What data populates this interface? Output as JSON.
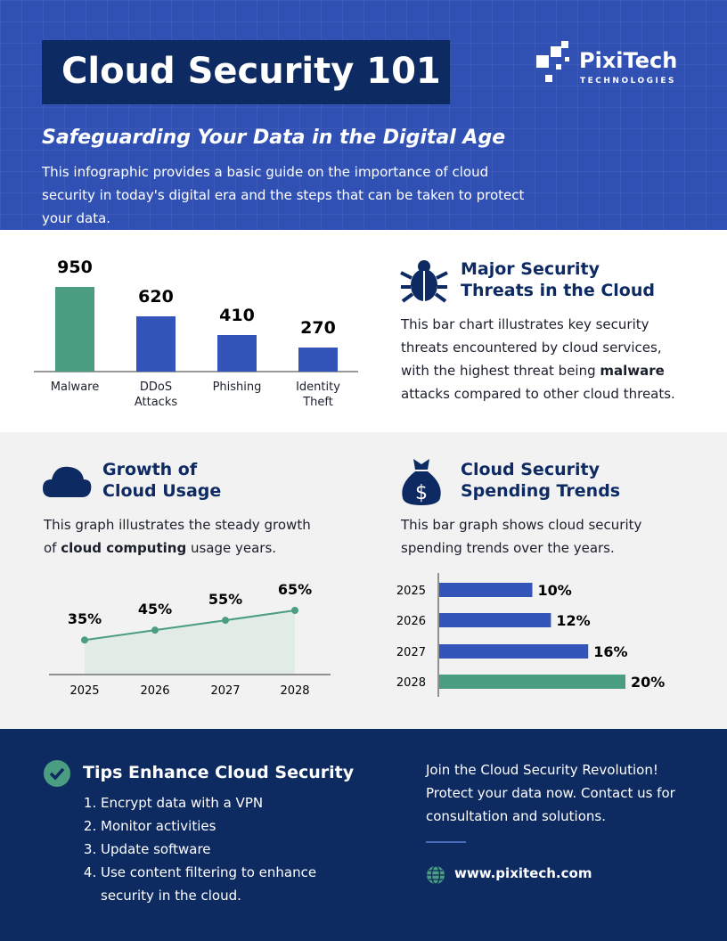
{
  "header": {
    "title": "Cloud Security 101",
    "logo_name": "PixiTech",
    "logo_sub": "TECHNOLOGIES",
    "subtitle": "Safeguarding Your Data in the Digital Age",
    "intro": "This infographic provides a basic guide on the importance of cloud security in today's digital era and the steps that can be taken to protect your data."
  },
  "threats": {
    "heading": "Major Security Threats in the Cloud",
    "text_before": "This bar chart illustrates key security threats encountered by cloud services, with the highest threat being ",
    "text_bold": "malware",
    "text_after": " attacks compared to other cloud threats."
  },
  "growth": {
    "heading": "Growth of Cloud Usage",
    "text_before": "This graph illustrates the steady growth of ",
    "text_bold": "cloud computing",
    "text_after": " usage years."
  },
  "spending": {
    "heading": "Cloud Security Spending Trends",
    "text": "This bar graph shows cloud security spending trends over the years."
  },
  "tips": {
    "heading": "Tips Enhance Cloud Security",
    "items": [
      "Encrypt data with a VPN",
      "Monitor activities",
      "Update software",
      "Use content filtering to enhance security in the cloud."
    ]
  },
  "cta": {
    "text": "Join the Cloud Security Revolution! Protect your data now. Contact us for consultation and solutions.",
    "website": "www.pixitech.com"
  },
  "chart_data": [
    {
      "type": "bar",
      "categories": [
        "Malware",
        "DDoS Attacks",
        "Phishing",
        "Identity Theft"
      ],
      "values": [
        950,
        620,
        410,
        270
      ],
      "colors": [
        "#4a9d80",
        "#3354b8",
        "#3354b8",
        "#3354b8"
      ]
    },
    {
      "type": "line",
      "categories": [
        "2025",
        "2026",
        "2027",
        "2028"
      ],
      "values": [
        35,
        45,
        55,
        65
      ],
      "value_labels": [
        "35%",
        "45%",
        "55%",
        "65%"
      ],
      "color": "#4a9d80"
    },
    {
      "type": "hbar",
      "categories": [
        "2025",
        "2026",
        "2027",
        "2028"
      ],
      "values": [
        10,
        12,
        16,
        20
      ],
      "value_labels": [
        "10%",
        "12%",
        "16%",
        "20%"
      ],
      "colors": [
        "#3354b8",
        "#3354b8",
        "#3354b8",
        "#4a9d80"
      ]
    }
  ]
}
